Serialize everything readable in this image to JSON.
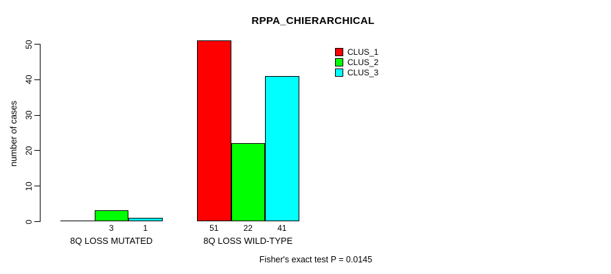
{
  "chart_data": {
    "type": "bar",
    "title": "RPPA_CHIERARCHICAL",
    "ylabel": "number of cases",
    "xlabel": "",
    "categories": [
      "8Q LOSS MUTATED",
      "8Q LOSS WILD-TYPE"
    ],
    "series": [
      {
        "name": "CLUS_1",
        "color": "#ff0000",
        "values": [
          0,
          51
        ]
      },
      {
        "name": "CLUS_2",
        "color": "#00ff00",
        "values": [
          3,
          22
        ]
      },
      {
        "name": "CLUS_3",
        "color": "#00ffff",
        "values": [
          1,
          41
        ]
      }
    ],
    "value_labels": [
      [
        "",
        "51"
      ],
      [
        "3",
        "22"
      ],
      [
        "1",
        "41"
      ]
    ],
    "ylim": [
      0,
      50
    ],
    "yticks": [
      0,
      10,
      20,
      30,
      40,
      50
    ],
    "grid": false,
    "legend_position": "top-right",
    "annotation": "Fisher's exact test P = 0.0145",
    "background": "#ffffff",
    "axis_color": "#000000"
  }
}
